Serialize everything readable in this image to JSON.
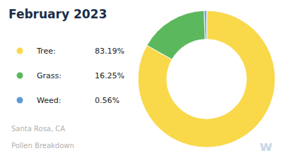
{
  "chart_data": {
    "type": "pie",
    "title": "February 2023",
    "subtitle": [
      "Santa Rosa, CA",
      "Pollen Breakdown"
    ],
    "categories": [
      "Tree:",
      "Grass:",
      "Weed:"
    ],
    "values": [
      83.19,
      16.25,
      0.56
    ],
    "value_labels": [
      "83.19%",
      "16.25%",
      "0.56%"
    ],
    "colors": [
      "#F9D84A",
      "#5CB85C",
      "#5B9BD5"
    ],
    "legend": "left",
    "annotations": [
      "w"
    ]
  }
}
